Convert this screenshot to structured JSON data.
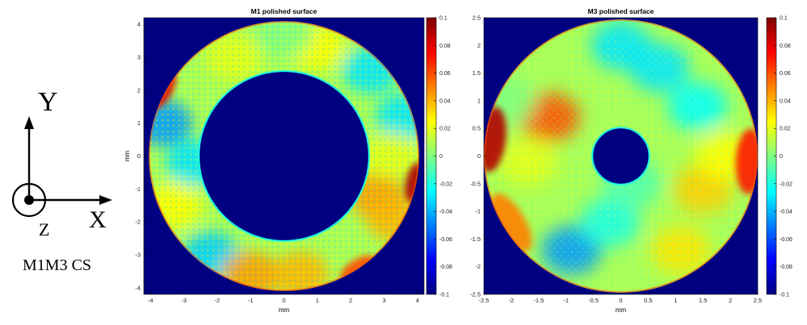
{
  "coordinate_system": {
    "x_label": "X",
    "y_label": "Y",
    "z_label": "Z",
    "caption": "M1M3 CS"
  },
  "colormap": {
    "name": "jet",
    "stops": [
      "#000080",
      "#0000ff",
      "#0080ff",
      "#00ffff",
      "#80ff80",
      "#ffff00",
      "#ff8000",
      "#ff0000",
      "#800000"
    ]
  },
  "chart_data": [
    {
      "type": "heatmap",
      "title": "M1 polished surface",
      "xlabel": "mm",
      "ylabel": "mm",
      "xlim": [
        -4.2,
        4.2
      ],
      "ylim": [
        -4.2,
        4.2
      ],
      "x_ticks": [
        -4,
        -3,
        -2,
        -1,
        0,
        1,
        2,
        3,
        4
      ],
      "y_ticks": [
        -4,
        -3,
        -2,
        -1,
        0,
        1,
        2,
        3,
        4
      ],
      "aperture": {
        "outer_radius": 4.05,
        "inner_radius": 2.55
      },
      "background_value": -0.1,
      "color_limits": [
        -0.1,
        0.1
      ],
      "colorbar_ticks": [
        -0.1,
        -0.08,
        -0.06,
        -0.04,
        -0.02,
        0,
        0.02,
        0.04,
        0.06,
        0.08,
        0.1
      ],
      "colorbar_tick_labels": [
        "-0.1",
        "-0.08",
        "-0.06",
        "-0.04",
        "-0.02",
        "0",
        "0.02",
        "0.04",
        "0.06",
        "0.08",
        "0.1"
      ],
      "features": [
        {
          "x": -3.6,
          "y": 1.0,
          "value": -0.045
        },
        {
          "x": -2.7,
          "y": -0.2,
          "value": -0.03
        },
        {
          "x": -2.2,
          "y": -3.0,
          "value": -0.035
        },
        {
          "x": 3.6,
          "y": 1.2,
          "value": -0.03
        },
        {
          "x": 2.6,
          "y": 2.6,
          "value": -0.03
        },
        {
          "x": -1.5,
          "y": 3.0,
          "value": 0.02
        },
        {
          "x": 1.0,
          "y": 3.3,
          "value": 0.025
        },
        {
          "x": 2.8,
          "y": -1.2,
          "value": 0.045
        },
        {
          "x": 3.3,
          "y": -1.9,
          "value": 0.04
        },
        {
          "x": -1.0,
          "y": -3.6,
          "value": 0.045
        },
        {
          "x": 0.5,
          "y": -3.6,
          "value": 0.04
        },
        {
          "x": -3.3,
          "y": -1.5,
          "value": 0.025
        },
        {
          "x": 3.2,
          "y": 0.0,
          "value": 0.02
        },
        {
          "x": 0.0,
          "y": 3.7,
          "value": 0.0
        }
      ],
      "edge_effects": [
        {
          "x": -3.6,
          "y": 2.0,
          "value": 0.08
        },
        {
          "x": 3.9,
          "y": -0.8,
          "value": 0.09
        },
        {
          "x": 2.2,
          "y": -3.4,
          "value": 0.06
        }
      ]
    },
    {
      "type": "heatmap",
      "title": "M3 polished surface",
      "xlabel": "mm",
      "ylabel": "",
      "xlim": [
        -2.5,
        2.5
      ],
      "ylim": [
        -2.5,
        2.5
      ],
      "x_ticks": [
        -2.5,
        -2,
        -1.5,
        -1,
        -0.5,
        0,
        0.5,
        1,
        1.5,
        2,
        2.5
      ],
      "y_ticks": [
        -2.5,
        -2,
        -1.5,
        -1,
        -0.5,
        0,
        0.5,
        1,
        1.5,
        2,
        2.5
      ],
      "aperture": {
        "outer_radius": 2.5,
        "inner_radius": 0.52
      },
      "background_value": -0.1,
      "color_limits": [
        -0.1,
        0.1
      ],
      "colorbar_ticks": [
        -0.1,
        -0.08,
        -0.06,
        -0.04,
        -0.02,
        0,
        0.02,
        0.04,
        0.06,
        0.08,
        0.1
      ],
      "colorbar_tick_labels": [
        "-0.1",
        "-0.08",
        "-0.06",
        "-0.04",
        "-0.02",
        "0",
        "0.02",
        "0.04",
        "0.06",
        "0.08",
        "0.1"
      ],
      "features": [
        {
          "x": -1.3,
          "y": 0.7,
          "value": 0.06
        },
        {
          "x": -1.7,
          "y": -0.1,
          "value": 0.02
        },
        {
          "x": 1.4,
          "y": 0.9,
          "value": -0.025
        },
        {
          "x": -0.9,
          "y": -1.7,
          "value": -0.045
        },
        {
          "x": -0.2,
          "y": -1.2,
          "value": -0.02
        },
        {
          "x": 1.5,
          "y": -0.6,
          "value": 0.035
        },
        {
          "x": 1.9,
          "y": 0.0,
          "value": 0.025
        },
        {
          "x": 0.0,
          "y": 2.0,
          "value": -0.03
        },
        {
          "x": 0.7,
          "y": 1.6,
          "value": -0.03
        },
        {
          "x": 0.2,
          "y": -0.5,
          "value": -0.01
        },
        {
          "x": -2.1,
          "y": 1.0,
          "value": 0.0
        },
        {
          "x": 1.1,
          "y": -1.7,
          "value": 0.03
        }
      ],
      "edge_effects": [
        {
          "x": -2.35,
          "y": 0.3,
          "value": 0.09
        },
        {
          "x": 2.35,
          "y": -0.1,
          "value": 0.07
        },
        {
          "x": -2.0,
          "y": -1.2,
          "value": 0.05
        }
      ]
    }
  ]
}
